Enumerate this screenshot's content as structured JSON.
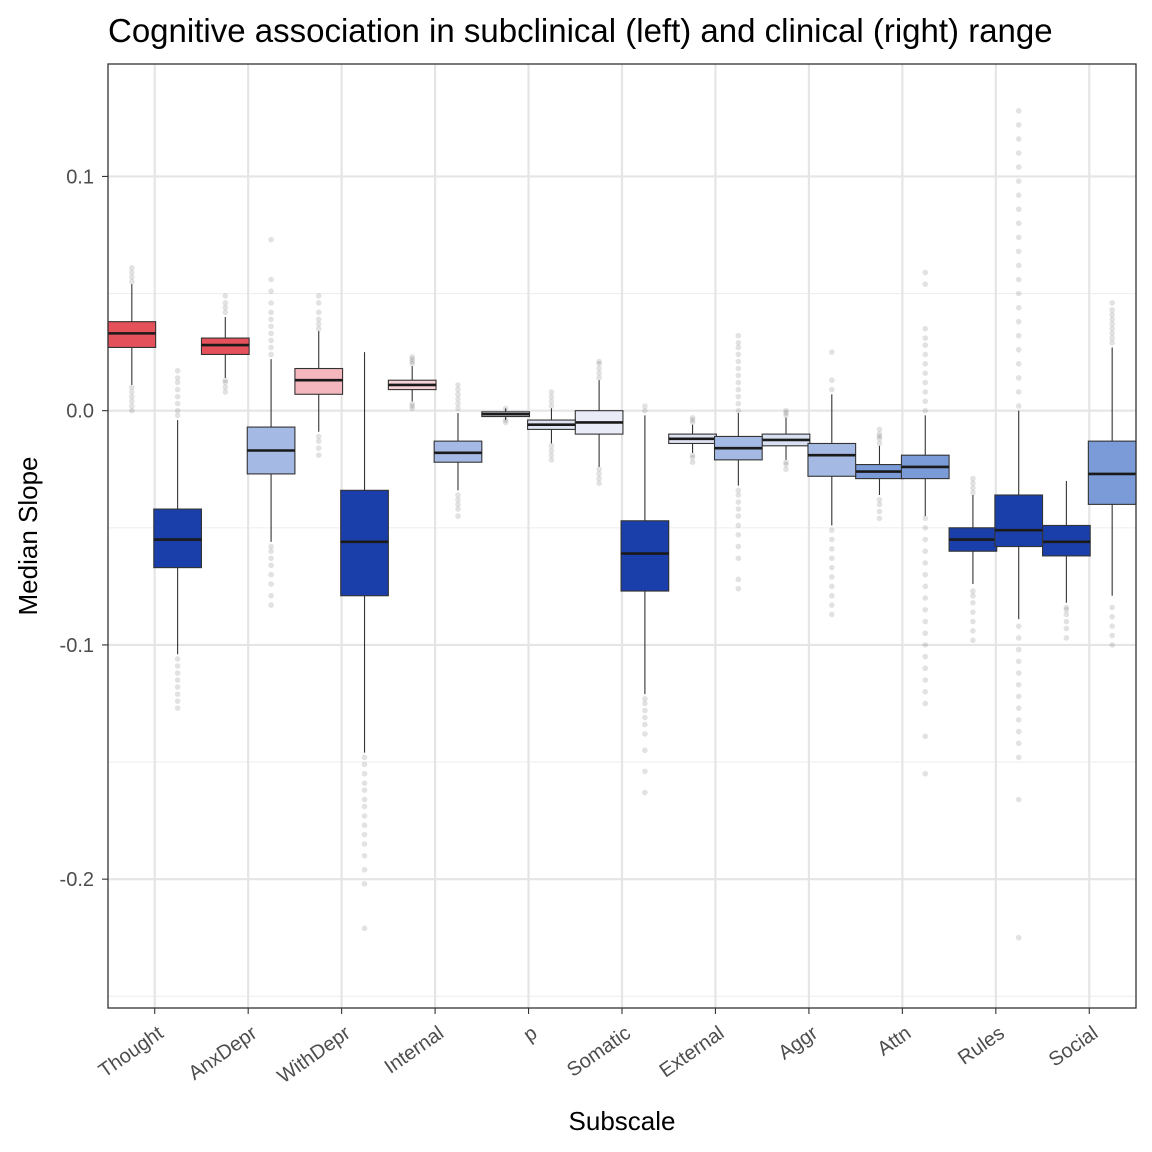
{
  "chart_data": {
    "type": "boxplot",
    "title": "Cognitive association in subclinical (left) and clinical (right) range",
    "xlabel": "Subscale",
    "ylabel": "Median Slope",
    "ylim": [
      -0.255,
      0.148
    ],
    "yticks": [
      -0.2,
      -0.1,
      0.0,
      0.1
    ],
    "ytick_labels": [
      "-0.2",
      "-0.1",
      "0.0",
      "0.1"
    ],
    "y_minor_ticks": [
      -0.25,
      -0.15,
      -0.05,
      0.05
    ],
    "grid": true,
    "categories": [
      "Thought",
      "AnxDepr",
      "WithDepr",
      "Internal",
      "p",
      "Somatic",
      "External",
      "Aggr",
      "Attn",
      "Rules",
      "Social"
    ],
    "series": [
      {
        "range": "subclinical",
        "boxes": [
          {
            "q1": 0.027,
            "median": 0.033,
            "q3": 0.038,
            "lower": 0.011,
            "upper": 0.054,
            "color": "#e5515a",
            "outliers": [
              0.0,
              0.002,
              0.004,
              0.006,
              0.008,
              0.01,
              0.055,
              0.057,
              0.059,
              0.061
            ]
          },
          {
            "q1": 0.024,
            "median": 0.028,
            "q3": 0.031,
            "lower": 0.014,
            "upper": 0.04,
            "color": "#e5515a",
            "outliers": [
              0.008,
              0.01,
              0.012,
              0.013,
              0.042,
              0.044,
              0.046,
              0.049
            ]
          },
          {
            "q1": 0.007,
            "median": 0.013,
            "q3": 0.018,
            "lower": -0.009,
            "upper": 0.034,
            "color": "#f4b7bd",
            "outliers": [
              -0.019,
              -0.016,
              -0.013,
              -0.011,
              0.035,
              0.037,
              0.039,
              0.042,
              0.046,
              0.049
            ]
          },
          {
            "q1": 0.009,
            "median": 0.011,
            "q3": 0.013,
            "lower": 0.004,
            "upper": 0.019,
            "color": "#f6d2d6",
            "outliers": [
              0.001,
              0.002,
              0.003,
              0.02,
              0.021,
              0.022,
              0.023
            ]
          },
          {
            "q1": -0.0025,
            "median": -0.0015,
            "q3": -0.0005,
            "lower": -0.004,
            "upper": 0.001,
            "color": "#eef0f8",
            "outliers": [
              -0.005,
              -0.004,
              0.001
            ]
          },
          {
            "q1": -0.01,
            "median": -0.005,
            "q3": 0.0,
            "lower": -0.024,
            "upper": 0.013,
            "color": "#e9ecf7",
            "outliers": [
              -0.031,
              -0.029,
              -0.027,
              -0.025,
              0.014,
              0.016,
              0.018,
              0.02,
              0.021
            ]
          },
          {
            "q1": -0.014,
            "median": -0.012,
            "q3": -0.01,
            "lower": -0.018,
            "upper": -0.006,
            "color": "#dfe4f3",
            "outliers": [
              -0.022,
              -0.02,
              -0.019,
              -0.005,
              -0.004,
              -0.003
            ]
          },
          {
            "q1": -0.015,
            "median": -0.0125,
            "q3": -0.01,
            "lower": -0.021,
            "upper": -0.003,
            "color": "#d9e0f2",
            "outliers": [
              -0.025,
              -0.023,
              -0.022,
              -0.002,
              -0.001,
              0.0
            ]
          },
          {
            "q1": -0.029,
            "median": -0.026,
            "q3": -0.023,
            "lower": -0.036,
            "upper": -0.015,
            "color": "#7b9bd8",
            "outliers": [
              -0.046,
              -0.043,
              -0.04,
              -0.038,
              -0.014,
              -0.012,
              -0.011,
              -0.01,
              -0.008
            ]
          },
          {
            "q1": -0.06,
            "median": -0.055,
            "q3": -0.05,
            "lower": -0.074,
            "upper": -0.036,
            "color": "#1a3faa",
            "outliers": [
              -0.098,
              -0.094,
              -0.09,
              -0.086,
              -0.082,
              -0.079,
              -0.077,
              -0.035,
              -0.033,
              -0.031,
              -0.029
            ]
          },
          {
            "q1": -0.062,
            "median": -0.056,
            "q3": -0.049,
            "lower": -0.082,
            "upper": -0.03,
            "color": "#1a3faa",
            "outliers": [
              -0.097,
              -0.093,
              -0.09,
              -0.087,
              -0.085,
              -0.084
            ]
          }
        ]
      },
      {
        "range": "clinical",
        "boxes": [
          {
            "q1": -0.067,
            "median": -0.055,
            "q3": -0.042,
            "lower": -0.104,
            "upper": -0.004,
            "color": "#1a3faa",
            "outliers": [
              -0.127,
              -0.124,
              -0.121,
              -0.118,
              -0.115,
              -0.112,
              -0.109,
              -0.106,
              -0.002,
              0.0,
              0.003,
              0.006,
              0.009,
              0.012,
              0.014,
              0.017
            ]
          },
          {
            "q1": -0.027,
            "median": -0.017,
            "q3": -0.007,
            "lower": -0.056,
            "upper": 0.022,
            "color": "#a4b9e3",
            "outliers": [
              -0.083,
              -0.079,
              -0.074,
              -0.07,
              -0.066,
              -0.063,
              -0.06,
              -0.058,
              0.024,
              0.027,
              0.03,
              0.033,
              0.036,
              0.039,
              0.042,
              0.046,
              0.051,
              0.056,
              0.073
            ]
          },
          {
            "q1": -0.079,
            "median": -0.056,
            "q3": -0.034,
            "lower": -0.146,
            "upper": 0.025,
            "color": "#1a3faa",
            "outliers": [
              -0.221,
              -0.202,
              -0.196,
              -0.19,
              -0.185,
              -0.181,
              -0.177,
              -0.173,
              -0.169,
              -0.166,
              -0.162,
              -0.159,
              -0.155,
              -0.151,
              -0.148
            ]
          },
          {
            "q1": -0.022,
            "median": -0.018,
            "q3": -0.013,
            "lower": -0.034,
            "upper": -0.001,
            "color": "#a4b9e3",
            "outliers": [
              -0.045,
              -0.042,
              -0.04,
              -0.038,
              -0.036,
              0.001,
              0.003,
              0.005,
              0.007,
              0.009,
              0.011
            ]
          },
          {
            "q1": -0.008,
            "median": -0.006,
            "q3": -0.004,
            "lower": -0.014,
            "upper": 0.001,
            "color": "#dfe4f3",
            "outliers": [
              -0.021,
              -0.019,
              -0.017,
              -0.015,
              0.002,
              0.004,
              0.006,
              0.008
            ]
          },
          {
            "q1": -0.077,
            "median": -0.061,
            "q3": -0.047,
            "lower": -0.121,
            "upper": -0.002,
            "color": "#1a3faa",
            "outliers": [
              -0.163,
              -0.154,
              -0.145,
              -0.138,
              -0.134,
              -0.131,
              -0.128,
              -0.125,
              -0.123,
              0.0,
              0.002
            ]
          },
          {
            "q1": -0.021,
            "median": -0.016,
            "q3": -0.011,
            "lower": -0.032,
            "upper": -0.001,
            "color": "#a4b9e3",
            "outliers": [
              -0.076,
              -0.072,
              -0.063,
              -0.058,
              -0.053,
              -0.049,
              -0.045,
              -0.042,
              -0.039,
              -0.036,
              -0.034,
              0.0,
              0.003,
              0.006,
              0.009,
              0.012,
              0.015,
              0.018,
              0.021,
              0.024,
              0.027,
              0.029,
              0.032
            ]
          },
          {
            "q1": -0.028,
            "median": -0.019,
            "q3": -0.014,
            "lower": -0.049,
            "upper": 0.007,
            "color": "#a4b9e3",
            "outliers": [
              -0.087,
              -0.083,
              -0.079,
              -0.075,
              -0.071,
              -0.067,
              -0.063,
              -0.059,
              -0.055,
              -0.051,
              0.009,
              0.013,
              0.025
            ]
          },
          {
            "q1": -0.029,
            "median": -0.024,
            "q3": -0.019,
            "lower": -0.045,
            "upper": -0.002,
            "color": "#7b9bd8",
            "outliers": [
              -0.155,
              -0.139,
              -0.125,
              -0.12,
              -0.115,
              -0.11,
              -0.105,
              -0.1,
              -0.095,
              -0.09,
              -0.085,
              -0.08,
              -0.075,
              -0.07,
              -0.065,
              -0.06,
              -0.055,
              -0.05,
              -0.046,
              0.0,
              0.004,
              0.008,
              0.012,
              0.016,
              0.02,
              0.024,
              0.028,
              0.031,
              0.035,
              0.054,
              0.059
            ]
          },
          {
            "q1": -0.058,
            "median": -0.051,
            "q3": -0.036,
            "lower": -0.089,
            "upper": 0.0,
            "color": "#1a3faa",
            "outliers": [
              -0.225,
              -0.166,
              -0.148,
              -0.142,
              -0.137,
              -0.132,
              -0.127,
              -0.122,
              -0.117,
              -0.112,
              -0.107,
              -0.102,
              -0.097,
              -0.092,
              0.002,
              0.008,
              0.014,
              0.02,
              0.026,
              0.032,
              0.038,
              0.044,
              0.05,
              0.056,
              0.062,
              0.068,
              0.074,
              0.08,
              0.086,
              0.092,
              0.098,
              0.104,
              0.11,
              0.116,
              0.122,
              0.128
            ]
          },
          {
            "q1": -0.04,
            "median": -0.027,
            "q3": -0.013,
            "lower": -0.079,
            "upper": 0.027,
            "color": "#7b9bd8",
            "outliers": [
              -0.1,
              -0.096,
              -0.092,
              -0.088,
              -0.084,
              0.029,
              0.031,
              0.033,
              0.035,
              0.037,
              0.039,
              0.041,
              0.043,
              0.046
            ]
          }
        ]
      }
    ]
  }
}
